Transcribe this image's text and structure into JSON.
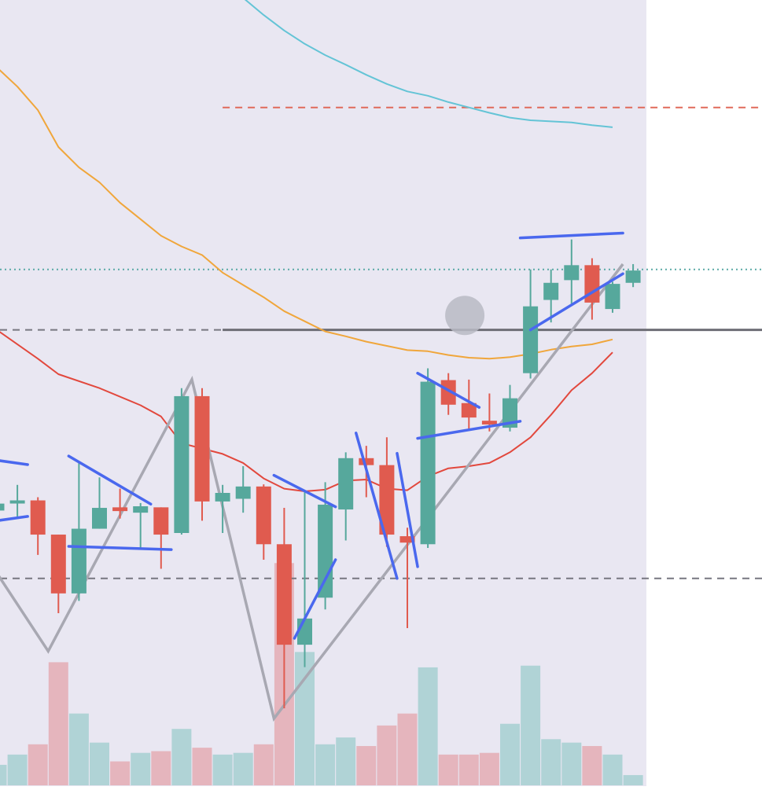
{
  "colors": {
    "plot_background": "#e9e7f2",
    "page_background": "#ffffff",
    "up_candle": "#56a89c",
    "down_candle": "#e05b4f",
    "volume_up": "#b0d3d6",
    "volume_down": "#e5b5bd",
    "ma_short": "#e2483d",
    "ma_mid": "#f0a63b",
    "ma_long": "#64c4d6",
    "trend_lines": "#4a68ee",
    "zigzag": "#a8a8b2",
    "level_line": "#6e6e76",
    "dashed_level_red": "#e06a5a",
    "dashed_level_gray": "#777780",
    "dotted_level_teal": "#5aaaa6",
    "marker": "#b8bac4"
  },
  "chart_data": {
    "type": "candlestick",
    "title": "",
    "xlabel": "",
    "ylabel": "",
    "ylim": [
      0,
      100
    ],
    "grid": false,
    "legend": "none",
    "candles": [
      {
        "open": 46.7,
        "high": 50.0,
        "low": 46.3,
        "close": 48.0
      },
      {
        "open": 48.1,
        "high": 51.5,
        "low": 45.6,
        "close": 48.6
      },
      {
        "open": 48.6,
        "high": 49.2,
        "low": 38.4,
        "close": 42.2
      },
      {
        "open": 42.2,
        "high": 42.2,
        "low": 27.5,
        "close": 31.2
      },
      {
        "open": 31.2,
        "high": 55.9,
        "low": 29.8,
        "close": 43.3
      },
      {
        "open": 43.3,
        "high": 52.9,
        "low": 43.3,
        "close": 47.2
      },
      {
        "open": 47.3,
        "high": 50.8,
        "low": 45.2,
        "close": 46.6
      },
      {
        "open": 46.3,
        "high": 48.1,
        "low": 39.7,
        "close": 47.5
      },
      {
        "open": 47.3,
        "high": 47.3,
        "low": 35.8,
        "close": 42.2
      },
      {
        "open": 42.5,
        "high": 69.6,
        "low": 42.2,
        "close": 68.1
      },
      {
        "open": 68.1,
        "high": 69.6,
        "low": 44.8,
        "close": 48.4
      },
      {
        "open": 48.4,
        "high": 51.5,
        "low": 42.5,
        "close": 50.0
      },
      {
        "open": 48.9,
        "high": 55.0,
        "low": 46.3,
        "close": 51.2
      },
      {
        "open": 51.2,
        "high": 51.6,
        "low": 37.5,
        "close": 40.4
      },
      {
        "open": 40.4,
        "high": 47.2,
        "low": 9.7,
        "close": 21.6
      },
      {
        "open": 21.6,
        "high": 50.5,
        "low": 17.4,
        "close": 26.5
      },
      {
        "open": 30.4,
        "high": 52.0,
        "low": 28.2,
        "close": 47.8
      },
      {
        "open": 46.9,
        "high": 57.6,
        "low": 41.1,
        "close": 56.5
      },
      {
        "open": 56.5,
        "high": 58.8,
        "low": 49.2,
        "close": 55.2
      },
      {
        "open": 55.2,
        "high": 60.4,
        "low": 39.9,
        "close": 42.2
      },
      {
        "open": 41.9,
        "high": 43.5,
        "low": 24.7,
        "close": 40.7
      },
      {
        "open": 40.4,
        "high": 73.3,
        "low": 39.7,
        "close": 70.8
      },
      {
        "open": 71.1,
        "high": 72.4,
        "low": 64.6,
        "close": 66.5
      },
      {
        "open": 66.8,
        "high": 71.2,
        "low": 61.7,
        "close": 64.1
      },
      {
        "open": 63.5,
        "high": 68.6,
        "low": 61.5,
        "close": 62.8
      },
      {
        "open": 62.2,
        "high": 70.2,
        "low": 61.5,
        "close": 67.7
      },
      {
        "open": 72.4,
        "high": 91.8,
        "low": 71.4,
        "close": 84.9
      },
      {
        "open": 86.1,
        "high": 91.8,
        "low": 81.9,
        "close": 89.3
      },
      {
        "open": 89.8,
        "high": 97.4,
        "low": 85.4,
        "close": 92.6
      },
      {
        "open": 92.6,
        "high": 93.9,
        "low": 82.4,
        "close": 85.6
      },
      {
        "open": 84.4,
        "high": 89.5,
        "low": 83.7,
        "close": 89.1
      },
      {
        "open": 89.3,
        "high": 92.8,
        "low": 88.5,
        "close": 91.6
      }
    ],
    "volume": [
      {
        "value": 6,
        "dir": "up"
      },
      {
        "value": 9,
        "dir": "up"
      },
      {
        "value": 12,
        "dir": "down"
      },
      {
        "value": 36,
        "dir": "down"
      },
      {
        "value": 21,
        "dir": "up"
      },
      {
        "value": 12.5,
        "dir": "up"
      },
      {
        "value": 7,
        "dir": "down"
      },
      {
        "value": 9.5,
        "dir": "up"
      },
      {
        "value": 10,
        "dir": "down"
      },
      {
        "value": 16.5,
        "dir": "up"
      },
      {
        "value": 11,
        "dir": "down"
      },
      {
        "value": 9,
        "dir": "up"
      },
      {
        "value": 9.5,
        "dir": "up"
      },
      {
        "value": 12,
        "dir": "down"
      },
      {
        "value": 65,
        "dir": "down"
      },
      {
        "value": 39,
        "dir": "up"
      },
      {
        "value": 12,
        "dir": "up"
      },
      {
        "value": 14,
        "dir": "up"
      },
      {
        "value": 11.5,
        "dir": "down"
      },
      {
        "value": 17.5,
        "dir": "down"
      },
      {
        "value": 21,
        "dir": "down"
      },
      {
        "value": 34.5,
        "dir": "up"
      },
      {
        "value": 9,
        "dir": "down"
      },
      {
        "value": 9,
        "dir": "down"
      },
      {
        "value": 9.5,
        "dir": "down"
      },
      {
        "value": 18,
        "dir": "up"
      },
      {
        "value": 35,
        "dir": "up"
      },
      {
        "value": 13.5,
        "dir": "up"
      },
      {
        "value": 12.5,
        "dir": "up"
      },
      {
        "value": 11.5,
        "dir": "down"
      },
      {
        "value": 9,
        "dir": "up"
      },
      {
        "value": 3,
        "dir": "up"
      }
    ],
    "moving_averages": [
      {
        "color_key": "ma_short",
        "points": [
          [
            0,
            80.5
          ],
          [
            2,
            75.1
          ],
          [
            3,
            72.2
          ],
          [
            5,
            69.6
          ],
          [
            7,
            66.4
          ],
          [
            8,
            64.3
          ],
          [
            9,
            59.3
          ],
          [
            11,
            57.3
          ],
          [
            12,
            55.6
          ],
          [
            13,
            52.7
          ],
          [
            14,
            50.8
          ],
          [
            15,
            50.3
          ],
          [
            16,
            50.6
          ],
          [
            17,
            52.3
          ],
          [
            18,
            52.5
          ],
          [
            19,
            50.8
          ],
          [
            20,
            50.5
          ],
          [
            21,
            53.1
          ],
          [
            22,
            54.6
          ],
          [
            23,
            55.0
          ],
          [
            24,
            55.6
          ],
          [
            25,
            57.6
          ],
          [
            26,
            60.4
          ],
          [
            27,
            64.6
          ],
          [
            28,
            69.2
          ],
          [
            29,
            72.4
          ],
          [
            30,
            76.3
          ]
        ]
      },
      {
        "color_key": "ma_mid",
        "points": [
          [
            0,
            129.6
          ],
          [
            1,
            126.0
          ],
          [
            2,
            121.6
          ],
          [
            3,
            114.7
          ],
          [
            4,
            110.9
          ],
          [
            5,
            108.1
          ],
          [
            6,
            104.3
          ],
          [
            7,
            101.2
          ],
          [
            8,
            98.1
          ],
          [
            9,
            96.1
          ],
          [
            10,
            94.5
          ],
          [
            11,
            91.2
          ],
          [
            12,
            88.9
          ],
          [
            13,
            86.6
          ],
          [
            14,
            84.0
          ],
          [
            15,
            82.1
          ],
          [
            16,
            80.2
          ],
          [
            17,
            79.3
          ],
          [
            18,
            78.3
          ],
          [
            19,
            77.5
          ],
          [
            20,
            76.7
          ],
          [
            21,
            76.5
          ],
          [
            22,
            75.8
          ],
          [
            23,
            75.3
          ],
          [
            24,
            75.1
          ],
          [
            25,
            75.4
          ],
          [
            26,
            76.0
          ],
          [
            27,
            76.8
          ],
          [
            28,
            77.4
          ],
          [
            29,
            77.8
          ],
          [
            30,
            78.7
          ]
        ]
      },
      {
        "color_key": "ma_long",
        "points": [
          [
            12,
            142.6
          ],
          [
            13,
            139.4
          ],
          [
            14,
            136.5
          ],
          [
            15,
            134.0
          ],
          [
            16,
            131.9
          ],
          [
            17,
            130.1
          ],
          [
            18,
            128.2
          ],
          [
            19,
            126.5
          ],
          [
            20,
            125.1
          ],
          [
            21,
            124.3
          ],
          [
            22,
            123.1
          ],
          [
            23,
            122.1
          ],
          [
            24,
            121.1
          ],
          [
            25,
            120.2
          ],
          [
            26,
            119.7
          ],
          [
            27,
            119.5
          ],
          [
            28,
            119.3
          ],
          [
            29,
            118.8
          ],
          [
            30,
            118.4
          ]
        ]
      }
    ],
    "levels": [
      {
        "y": 122.1,
        "style": "dashed",
        "color_key": "dashed_level_red",
        "from": 11
      },
      {
        "y": 80.5,
        "style": "solid",
        "color_key": "level_line",
        "from": 11
      },
      {
        "y": 80.5,
        "style": "dashed",
        "color_key": "dashed_level_gray",
        "from": 0,
        "to": 11
      },
      {
        "y": 91.8,
        "style": "dotted",
        "color_key": "dotted_level_teal",
        "from": 0
      },
      {
        "y": 34.0,
        "style": "dashed",
        "color_key": "dashed_level_gray",
        "from": 0
      }
    ],
    "zigzag": [
      [
        0,
        35.0
      ],
      [
        2.5,
        20.4
      ],
      [
        9.5,
        71.2
      ],
      [
        13.5,
        7.8
      ],
      [
        30.5,
        92.8
      ]
    ],
    "trend_lines": [
      [
        [
          0,
          56.1
        ],
        [
          1.5,
          55.3
        ]
      ],
      [
        [
          0,
          44.8
        ],
        [
          1.5,
          45.6
        ]
      ],
      [
        [
          3.5,
          56.9
        ],
        [
          7.5,
          47.9
        ]
      ],
      [
        [
          3.5,
          40.0
        ],
        [
          8.5,
          39.4
        ]
      ],
      [
        [
          13.5,
          53.3
        ],
        [
          16.5,
          47.4
        ]
      ],
      [
        [
          14.5,
          22.8
        ],
        [
          16.5,
          37.5
        ]
      ],
      [
        [
          17.5,
          61.2
        ],
        [
          19.5,
          34.0
        ]
      ],
      [
        [
          19.5,
          57.4
        ],
        [
          20.5,
          36.2
        ]
      ],
      [
        [
          20.5,
          72.4
        ],
        [
          23.5,
          66.0
        ]
      ],
      [
        [
          20.5,
          60.2
        ],
        [
          25.5,
          63.4
        ]
      ],
      [
        [
          25.5,
          97.7
        ],
        [
          30.5,
          98.6
        ]
      ],
      [
        [
          26.0,
          80.5
        ],
        [
          30.5,
          91.0
        ]
      ]
    ],
    "marker": {
      "x": 22.8,
      "y": 83.2
    }
  }
}
